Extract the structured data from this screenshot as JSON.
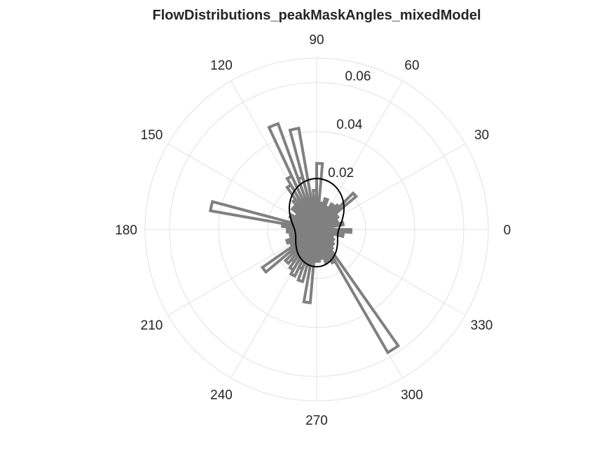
{
  "chart_data": {
    "type": "polar-histogram",
    "title": "FlowDistributions_peakMaskAngles_mixedModel",
    "theta_ticks_deg": [
      0,
      30,
      60,
      90,
      120,
      150,
      180,
      210,
      240,
      270,
      300,
      330
    ],
    "theta_tick_labels": [
      "0",
      "30",
      "60",
      "90",
      "120",
      "150",
      "180",
      "210",
      "240",
      "270",
      "300",
      "330"
    ],
    "r_ticks": [
      0.02,
      0.04,
      0.06
    ],
    "r_tick_labels": [
      "0.02",
      "0.04",
      "0.06"
    ],
    "rlim": [
      0,
      0.07
    ],
    "r_tick_label_angle_deg": 80,
    "grid": true,
    "bin_width_deg": 5,
    "histogram": {
      "edge_color": "#808080",
      "fill": "none",
      "bins": [
        {
          "theta": 2.5,
          "r": 0.006
        },
        {
          "theta": 7.5,
          "r": 0.005
        },
        {
          "theta": 12.5,
          "r": 0.011
        },
        {
          "theta": 17.5,
          "r": 0.007
        },
        {
          "theta": 22.5,
          "r": 0.009
        },
        {
          "theta": 27.5,
          "r": 0.008
        },
        {
          "theta": 32.5,
          "r": 0.01
        },
        {
          "theta": 37.5,
          "r": 0.007
        },
        {
          "theta": 42.5,
          "r": 0.021
        },
        {
          "theta": 47.5,
          "r": 0.013
        },
        {
          "theta": 52.5,
          "r": 0.009
        },
        {
          "theta": 57.5,
          "r": 0.012
        },
        {
          "theta": 62.5,
          "r": 0.008
        },
        {
          "theta": 67.5,
          "r": 0.01
        },
        {
          "theta": 72.5,
          "r": 0.013
        },
        {
          "theta": 77.5,
          "r": 0.009
        },
        {
          "theta": 82.5,
          "r": 0.011
        },
        {
          "theta": 87.5,
          "r": 0.027
        },
        {
          "theta": 92.5,
          "r": 0.016
        },
        {
          "theta": 97.5,
          "r": 0.013
        },
        {
          "theta": 102.5,
          "r": 0.042
        },
        {
          "theta": 107.5,
          "r": 0.022
        },
        {
          "theta": 112.5,
          "r": 0.046
        },
        {
          "theta": 117.5,
          "r": 0.024
        },
        {
          "theta": 122.5,
          "r": 0.021
        },
        {
          "theta": 127.5,
          "r": 0.015
        },
        {
          "theta": 132.5,
          "r": 0.011
        },
        {
          "theta": 137.5,
          "r": 0.013
        },
        {
          "theta": 142.5,
          "r": 0.01
        },
        {
          "theta": 147.5,
          "r": 0.008
        },
        {
          "theta": 152.5,
          "r": 0.012
        },
        {
          "theta": 157.5,
          "r": 0.011
        },
        {
          "theta": 162.5,
          "r": 0.009
        },
        {
          "theta": 167.5,
          "r": 0.044
        },
        {
          "theta": 172.5,
          "r": 0.014
        },
        {
          "theta": 177.5,
          "r": 0.01
        },
        {
          "theta": 182.5,
          "r": 0.012
        },
        {
          "theta": 187.5,
          "r": 0.01
        },
        {
          "theta": 192.5,
          "r": 0.011
        },
        {
          "theta": 197.5,
          "r": 0.009
        },
        {
          "theta": 202.5,
          "r": 0.013
        },
        {
          "theta": 207.5,
          "r": 0.011
        },
        {
          "theta": 212.5,
          "r": 0.012
        },
        {
          "theta": 217.5,
          "r": 0.027
        },
        {
          "theta": 222.5,
          "r": 0.014
        },
        {
          "theta": 227.5,
          "r": 0.018
        },
        {
          "theta": 232.5,
          "r": 0.016
        },
        {
          "theta": 237.5,
          "r": 0.019
        },
        {
          "theta": 242.5,
          "r": 0.021
        },
        {
          "theta": 247.5,
          "r": 0.017
        },
        {
          "theta": 252.5,
          "r": 0.022
        },
        {
          "theta": 257.5,
          "r": 0.015
        },
        {
          "theta": 262.5,
          "r": 0.03
        },
        {
          "theta": 267.5,
          "r": 0.011
        },
        {
          "theta": 272.5,
          "r": 0.013
        },
        {
          "theta": 277.5,
          "r": 0.009
        },
        {
          "theta": 282.5,
          "r": 0.012
        },
        {
          "theta": 287.5,
          "r": 0.014
        },
        {
          "theta": 292.5,
          "r": 0.011
        },
        {
          "theta": 297.5,
          "r": 0.015
        },
        {
          "theta": 302.5,
          "r": 0.058
        },
        {
          "theta": 307.5,
          "r": 0.01
        },
        {
          "theta": 312.5,
          "r": 0.008
        },
        {
          "theta": 317.5,
          "r": 0.009
        },
        {
          "theta": 322.5,
          "r": 0.007
        },
        {
          "theta": 327.5,
          "r": 0.008
        },
        {
          "theta": 332.5,
          "r": 0.006
        },
        {
          "theta": 337.5,
          "r": 0.007
        },
        {
          "theta": 342.5,
          "r": 0.006
        },
        {
          "theta": 347.5,
          "r": 0.011
        },
        {
          "theta": 352.5,
          "r": 0.008
        },
        {
          "theta": 357.5,
          "r": 0.014
        }
      ]
    },
    "model_curve": {
      "color": "#000000",
      "description_free": true,
      "mean_r": 0.0135,
      "harmonic2_amp": -0.0045,
      "harmonic1_amp": 0.0028,
      "peak_deg": 90
    }
  }
}
